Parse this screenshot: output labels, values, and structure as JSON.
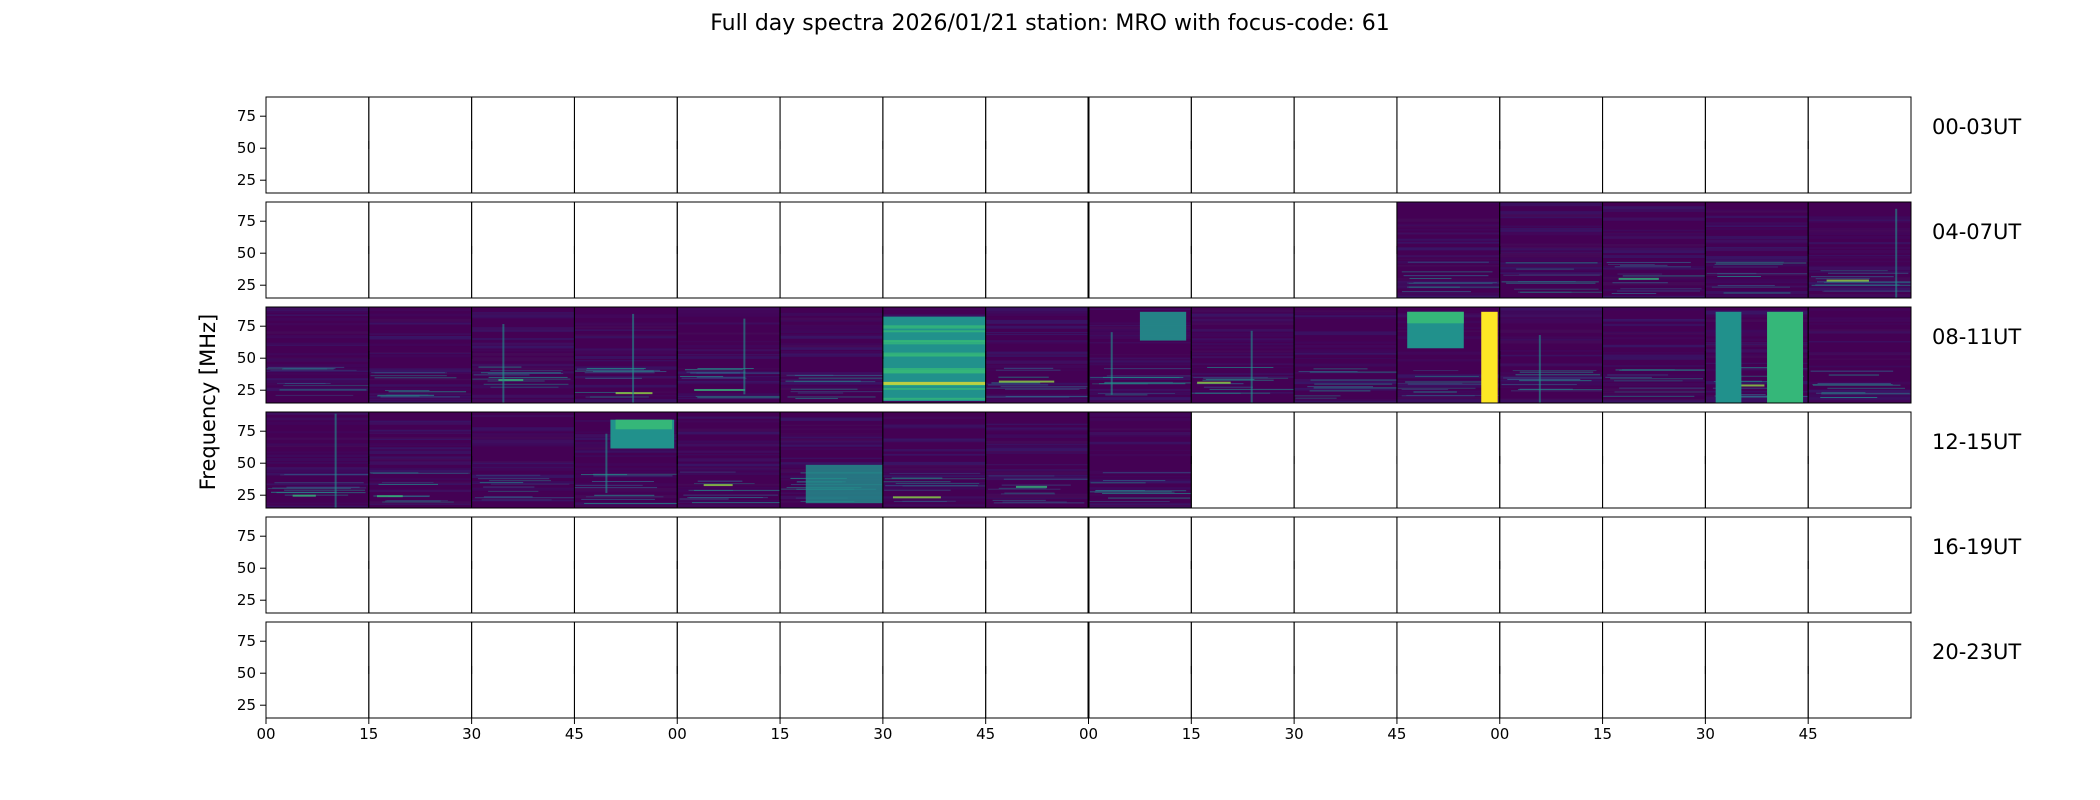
{
  "chart_data": {
    "type": "heatmap",
    "title": "Full day spectra 2026/01/21 station: MRO with focus-code: 61",
    "ylabel": "Frequency [MHz]",
    "xlabel": "",
    "colormap": "viridis",
    "y_ticks": [
      "75",
      "50",
      "25"
    ],
    "y_tick_values": [
      75,
      50,
      25
    ],
    "ylim": [
      15,
      90
    ],
    "x_tick_labels": [
      "00",
      "15",
      "30",
      "45",
      "00",
      "15",
      "30",
      "45",
      "00",
      "15",
      "30",
      "45",
      "00",
      "15",
      "30",
      "45"
    ],
    "segments_per_row": 16,
    "segment_minutes": 15,
    "rows": [
      {
        "label": "00-03UT",
        "filled": []
      },
      {
        "label": "04-07UT",
        "filled": [
          11,
          12,
          13,
          14,
          15
        ]
      },
      {
        "label": "08-11UT",
        "filled": [
          0,
          1,
          2,
          3,
          4,
          5,
          6,
          7,
          8,
          9,
          10,
          11,
          12,
          13,
          14,
          15
        ]
      },
      {
        "label": "12-15UT",
        "filled": [
          0,
          1,
          2,
          3,
          4,
          5,
          6,
          7,
          8
        ]
      },
      {
        "label": "16-19UT",
        "filled": []
      },
      {
        "label": "20-23UT",
        "filled": []
      }
    ],
    "colors": {
      "background": "#440154",
      "dark": "#3b0f70",
      "mid": "#31688e",
      "teal": "#21918c",
      "green": "#35b779",
      "bright": "#90d743",
      "yellow": "#fde725"
    }
  }
}
